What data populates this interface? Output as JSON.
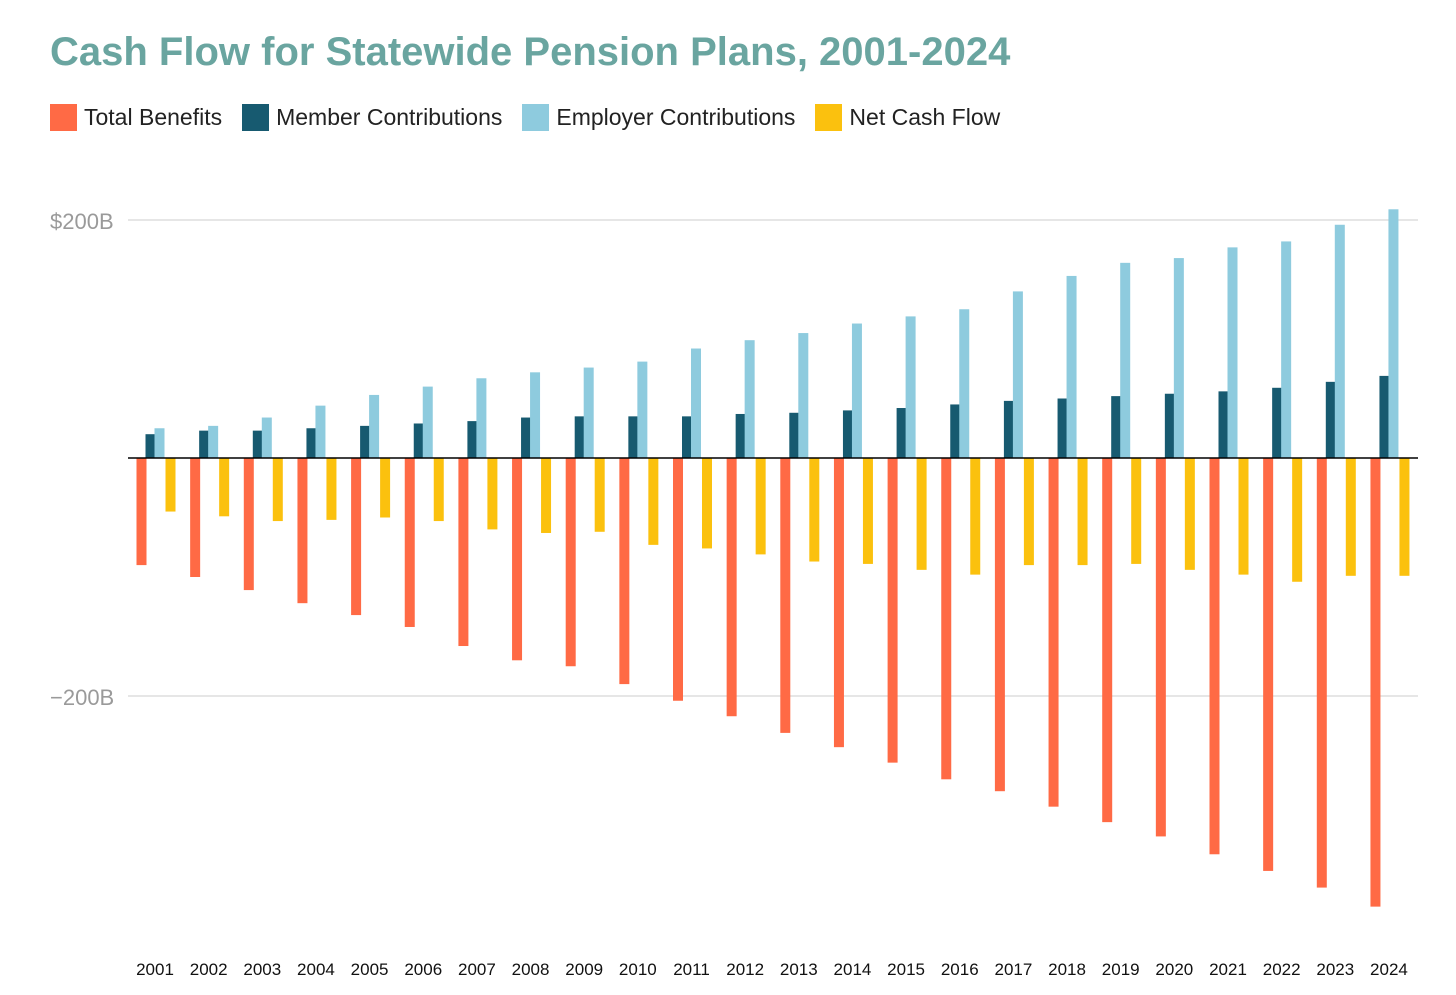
{
  "chart_data": {
    "type": "bar",
    "title": "Cash Flow for Statewide Pension Plans, 2001-2024",
    "xlabel": "",
    "ylabel": "",
    "ylim": [
      -380,
      220
    ],
    "y_ticks": [
      {
        "value": 200,
        "label": "$200B"
      },
      {
        "value": -200,
        "label": "−200B"
      }
    ],
    "grid": true,
    "legend_position": "top-left",
    "categories": [
      "2001",
      "2002",
      "2003",
      "2004",
      "2005",
      "2006",
      "2007",
      "2008",
      "2009",
      "2010",
      "2011",
      "2012",
      "2013",
      "2014",
      "2015",
      "2016",
      "2017",
      "2018",
      "2019",
      "2020",
      "2021",
      "2022",
      "2023",
      "2024"
    ],
    "series": [
      {
        "name": "Total Benefits",
        "color": "#ff6a45",
        "values": [
          -90,
          -100,
          -111,
          -122,
          -132,
          -142,
          -158,
          -170,
          -175,
          -190,
          -204,
          -217,
          -231,
          -243,
          -256,
          -270,
          -280,
          -293,
          -306,
          -318,
          -333,
          -347,
          -361,
          -377
        ]
      },
      {
        "name": "Member Contributions",
        "color": "#175a70",
        "values": [
          20,
          23,
          23,
          25,
          27,
          29,
          31,
          34,
          35,
          35,
          35,
          37,
          38,
          40,
          42,
          45,
          48,
          50,
          52,
          54,
          56,
          59,
          64,
          69
        ]
      },
      {
        "name": "Employer Contributions",
        "color": "#8ecbde",
        "values": [
          25,
          27,
          34,
          44,
          53,
          60,
          67,
          72,
          76,
          81,
          92,
          99,
          105,
          113,
          119,
          125,
          140,
          153,
          164,
          168,
          177,
          182,
          196,
          209
        ]
      },
      {
        "name": "Net Cash Flow",
        "color": "#fbc10e",
        "values": [
          -45,
          -49,
          -53,
          -52,
          -50,
          -53,
          -60,
          -63,
          -62,
          -73,
          -76,
          -81,
          -87,
          -89,
          -94,
          -98,
          -90,
          -90,
          -89,
          -94,
          -98,
          -104,
          -99,
          -99
        ]
      }
    ]
  }
}
